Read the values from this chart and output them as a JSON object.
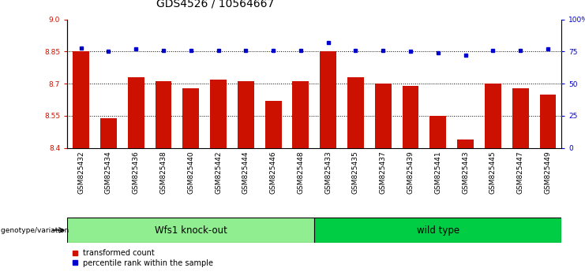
{
  "title": "GDS4526 / 10564667",
  "samples": [
    "GSM825432",
    "GSM825434",
    "GSM825436",
    "GSM825438",
    "GSM825440",
    "GSM825442",
    "GSM825444",
    "GSM825446",
    "GSM825448",
    "GSM825433",
    "GSM825435",
    "GSM825437",
    "GSM825439",
    "GSM825441",
    "GSM825443",
    "GSM825445",
    "GSM825447",
    "GSM825449"
  ],
  "bar_values": [
    8.85,
    8.54,
    8.73,
    8.71,
    8.68,
    8.72,
    8.71,
    8.62,
    8.71,
    8.85,
    8.73,
    8.7,
    8.69,
    8.55,
    8.44,
    8.7,
    8.68,
    8.65
  ],
  "percentile_values": [
    78,
    75,
    77,
    76,
    76,
    76,
    76,
    76,
    76,
    82,
    76,
    76,
    75,
    74,
    72,
    76,
    76,
    77
  ],
  "group1_label": "Wfs1 knock-out",
  "group2_label": "wild type",
  "group1_count": 9,
  "group2_count": 9,
  "ylim_left": [
    8.4,
    9.0
  ],
  "ylim_right": [
    0,
    100
  ],
  "yticks_left": [
    8.4,
    8.55,
    8.7,
    8.85,
    9.0
  ],
  "yticks_right": [
    0,
    25,
    50,
    75,
    100
  ],
  "bar_color": "#cc1100",
  "dot_color": "#0000cc",
  "grid_color": "black",
  "group1_bg": "#90ee90",
  "group2_bg": "#00cc44",
  "xlabel_area": "genotype/variation",
  "legend_bar": "transformed count",
  "legend_dot": "percentile rank within the sample",
  "title_fontsize": 10,
  "tick_fontsize": 6.5,
  "label_fontsize": 8.5
}
